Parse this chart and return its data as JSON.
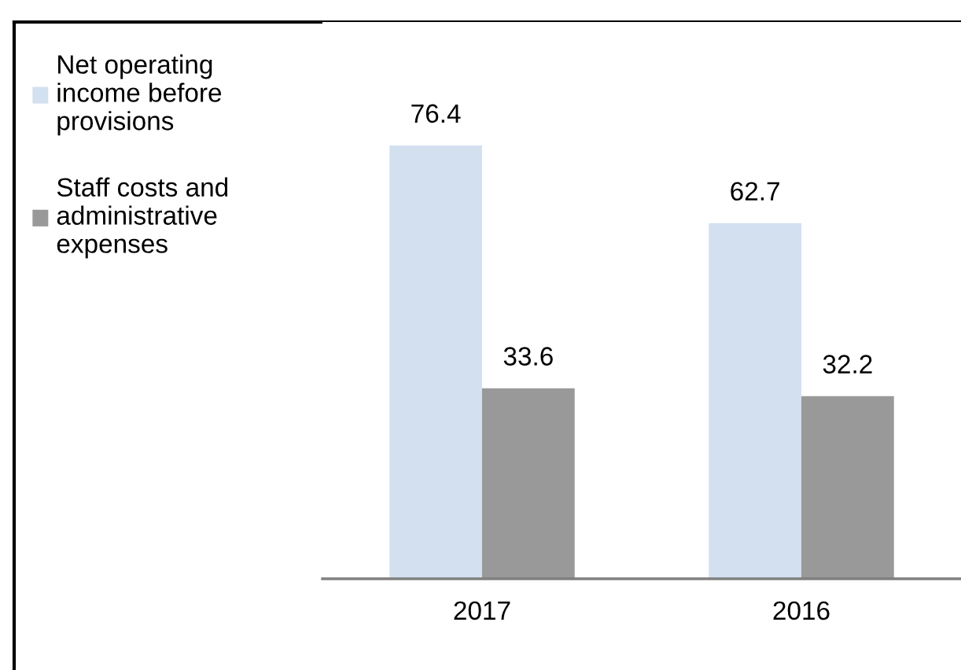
{
  "chart_data": {
    "type": "bar",
    "categories": [
      "2017",
      "2016"
    ],
    "series": [
      {
        "name": "Net operating income before provisions",
        "color": "#d3e0f0",
        "values": [
          76.4,
          62.7
        ]
      },
      {
        "name": "Staff costs and administrative expenses",
        "color": "#999999",
        "values": [
          33.6,
          32.2
        ]
      }
    ],
    "data_labels": true,
    "grid": false,
    "legend": "left"
  }
}
